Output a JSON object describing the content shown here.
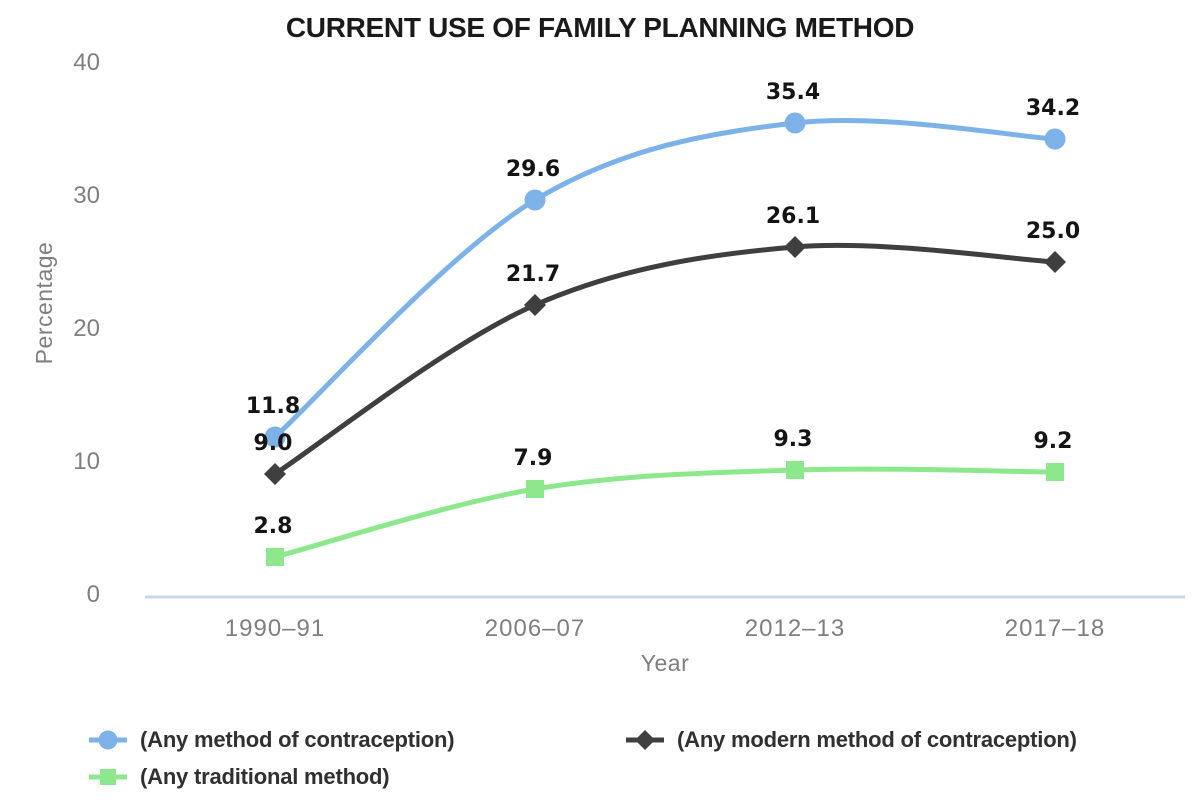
{
  "chart_data": {
    "type": "line",
    "title": "CURRENT USE OF FAMILY PLANNING METHOD",
    "xlabel": "Year",
    "ylabel": "Percentage",
    "ylim": [
      0,
      40
    ],
    "yticks": [
      0,
      10,
      20,
      30,
      40
    ],
    "categories": [
      "1990–91",
      "2006–07",
      "2012–13",
      "2017–18"
    ],
    "series": [
      {
        "name": "(Any method of contraception)",
        "marker": "circle",
        "color": "#7DB2E9",
        "values": [
          11.8,
          29.6,
          35.4,
          34.2
        ]
      },
      {
        "name": "(Any modern method of contraception)",
        "marker": "diamond",
        "color": "#3F3F3F",
        "values": [
          9.0,
          21.7,
          26.1,
          25.0
        ]
      },
      {
        "name": "(Any traditional method)",
        "marker": "square",
        "color": "#8DE88D",
        "values": [
          2.8,
          7.9,
          9.3,
          9.2
        ]
      }
    ],
    "grid": false,
    "data_labels": true,
    "legend_position": "bottom",
    "colors": {
      "axis_line": "#C9D6E6",
      "tick_text": "#7F7F7F",
      "data_label": "#141414",
      "legend_text": "#303030",
      "title_text": "#1A1A1A"
    }
  }
}
